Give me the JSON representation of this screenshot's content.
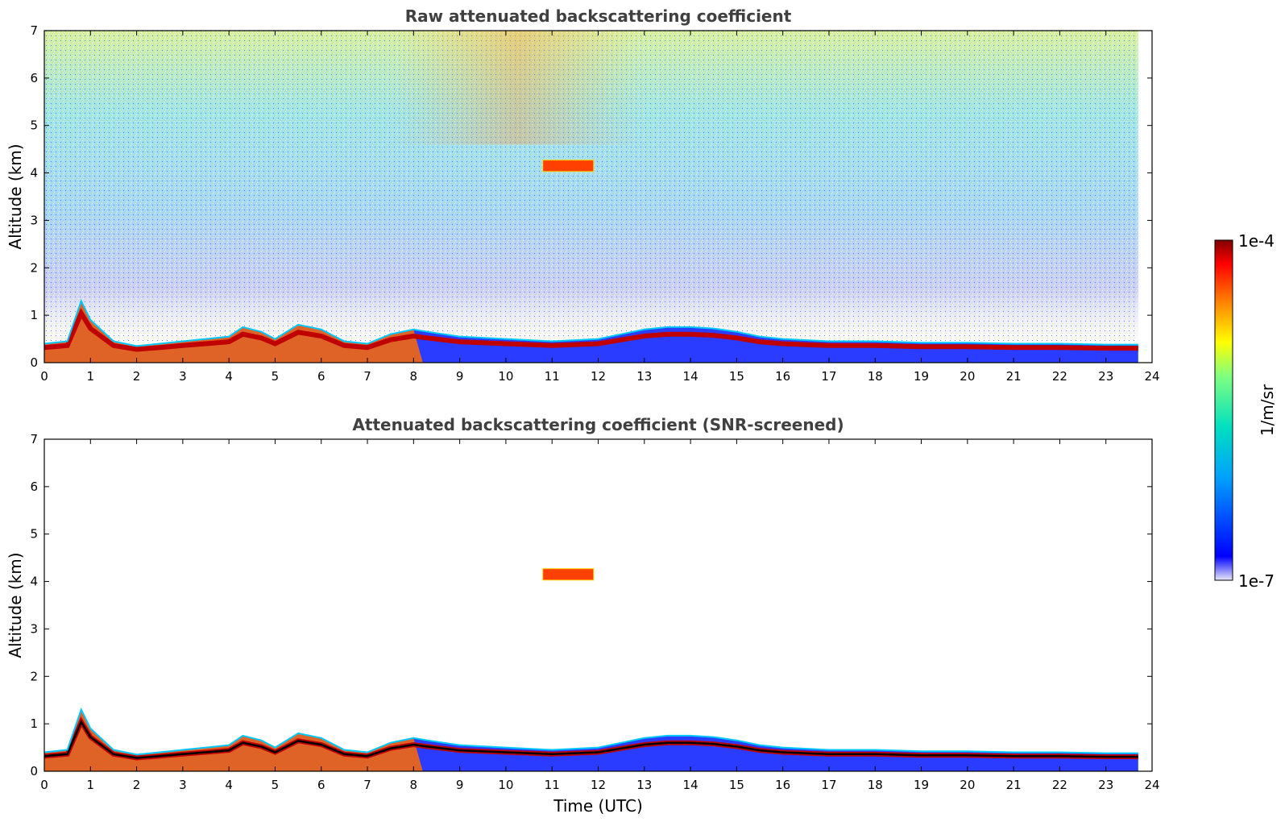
{
  "chart_data": [
    {
      "type": "heatmap",
      "title": "Raw attenuated backscattering coefficient",
      "xlabel": "",
      "ylabel": "Altitude (km)",
      "xlim": [
        0,
        24
      ],
      "ylim": [
        0,
        7
      ],
      "x_ticks": [
        "0",
        "1",
        "2",
        "3",
        "4",
        "5",
        "6",
        "7",
        "8",
        "9",
        "10",
        "11",
        "12",
        "13",
        "14",
        "15",
        "16",
        "17",
        "18",
        "19",
        "20",
        "21",
        "22",
        "23",
        "24"
      ],
      "y_ticks": [
        "0",
        "1",
        "2",
        "3",
        "4",
        "5",
        "6",
        "7"
      ],
      "data_end_time": 23.7,
      "boundary_layer_top_km": [
        [
          0,
          0.4
        ],
        [
          0.5,
          0.45
        ],
        [
          0.8,
          1.3
        ],
        [
          1.0,
          0.9
        ],
        [
          1.5,
          0.45
        ],
        [
          2.0,
          0.35
        ],
        [
          2.5,
          0.4
        ],
        [
          3.0,
          0.45
        ],
        [
          3.5,
          0.5
        ],
        [
          4.0,
          0.55
        ],
        [
          4.3,
          0.75
        ],
        [
          4.7,
          0.65
        ],
        [
          5.0,
          0.5
        ],
        [
          5.5,
          0.8
        ],
        [
          6.0,
          0.7
        ],
        [
          6.5,
          0.45
        ],
        [
          7.0,
          0.4
        ],
        [
          7.5,
          0.6
        ],
        [
          8.0,
          0.7
        ],
        [
          8.3,
          0.65
        ],
        [
          9.0,
          0.55
        ],
        [
          10.0,
          0.5
        ],
        [
          11.0,
          0.45
        ],
        [
          12.0,
          0.5
        ],
        [
          12.5,
          0.6
        ],
        [
          13.0,
          0.7
        ],
        [
          13.5,
          0.75
        ],
        [
          14.0,
          0.75
        ],
        [
          14.5,
          0.72
        ],
        [
          15.0,
          0.65
        ],
        [
          15.5,
          0.55
        ],
        [
          16.0,
          0.5
        ],
        [
          17.0,
          0.45
        ],
        [
          18.0,
          0.45
        ],
        [
          19.0,
          0.42
        ],
        [
          20.0,
          0.42
        ],
        [
          21.0,
          0.4
        ],
        [
          22.0,
          0.4
        ],
        [
          23.0,
          0.38
        ],
        [
          23.7,
          0.38
        ]
      ],
      "elevated_layer": {
        "start": 10.8,
        "end": 11.9,
        "altitude_km": 4.15
      }
    },
    {
      "type": "heatmap",
      "title": "Attenuated backscattering coefficient (SNR-screened)",
      "xlabel": "Time (UTC)",
      "ylabel": "Altitude (km)",
      "xlim": [
        0,
        24
      ],
      "ylim": [
        0,
        7
      ],
      "x_ticks": [
        "0",
        "1",
        "2",
        "3",
        "4",
        "5",
        "6",
        "7",
        "8",
        "9",
        "10",
        "11",
        "12",
        "13",
        "14",
        "15",
        "16",
        "17",
        "18",
        "19",
        "20",
        "21",
        "22",
        "23",
        "24"
      ],
      "y_ticks": [
        "0",
        "1",
        "2",
        "3",
        "4",
        "5",
        "6",
        "7"
      ],
      "data_end_time": 23.7,
      "boundary_layer_top_km": [
        [
          0,
          0.4
        ],
        [
          0.5,
          0.45
        ],
        [
          0.8,
          1.3
        ],
        [
          1.0,
          0.9
        ],
        [
          1.5,
          0.45
        ],
        [
          2.0,
          0.35
        ],
        [
          2.5,
          0.4
        ],
        [
          3.0,
          0.45
        ],
        [
          3.5,
          0.5
        ],
        [
          4.0,
          0.55
        ],
        [
          4.3,
          0.75
        ],
        [
          4.7,
          0.65
        ],
        [
          5.0,
          0.5
        ],
        [
          5.5,
          0.8
        ],
        [
          6.0,
          0.7
        ],
        [
          6.5,
          0.45
        ],
        [
          7.0,
          0.4
        ],
        [
          7.5,
          0.6
        ],
        [
          8.0,
          0.7
        ],
        [
          8.3,
          0.65
        ],
        [
          9.0,
          0.55
        ],
        [
          10.0,
          0.5
        ],
        [
          11.0,
          0.45
        ],
        [
          12.0,
          0.5
        ],
        [
          12.5,
          0.6
        ],
        [
          13.0,
          0.7
        ],
        [
          13.5,
          0.75
        ],
        [
          14.0,
          0.75
        ],
        [
          14.5,
          0.72
        ],
        [
          15.0,
          0.65
        ],
        [
          15.5,
          0.55
        ],
        [
          16.0,
          0.5
        ],
        [
          17.0,
          0.45
        ],
        [
          18.0,
          0.45
        ],
        [
          19.0,
          0.42
        ],
        [
          20.0,
          0.42
        ],
        [
          21.0,
          0.4
        ],
        [
          22.0,
          0.4
        ],
        [
          23.0,
          0.38
        ],
        [
          23.7,
          0.38
        ]
      ],
      "elevated_layer": {
        "start": 10.8,
        "end": 11.9,
        "altitude_km": 4.15
      }
    }
  ],
  "colorbar": {
    "label": "1/m/sr",
    "max_label": "1e-4",
    "min_label": "1e-7",
    "colors": [
      "#e8e8f8",
      "#0000ff",
      "#00a0ff",
      "#00e0c0",
      "#80ff80",
      "#ffff00",
      "#ff8000",
      "#ff0000",
      "#800000"
    ]
  }
}
